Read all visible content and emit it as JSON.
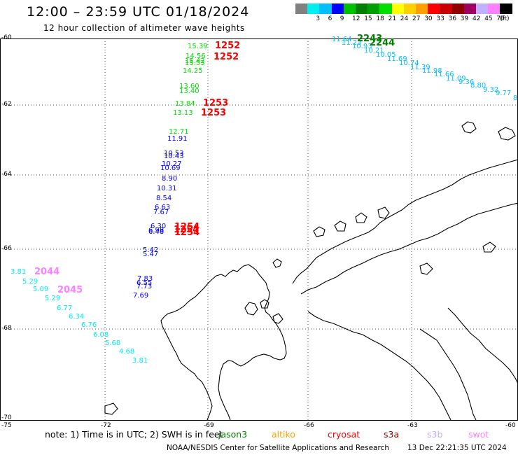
{
  "header": {
    "title": "12:00 – 23:59 UTC 01/18/2024",
    "subtitle": "12 hour collection of altimeter wave heights"
  },
  "colorbar": {
    "unit": "(ft)",
    "bins": [
      {
        "color": "#808080",
        "label": ""
      },
      {
        "color": "#00eeee",
        "label": "3"
      },
      {
        "color": "#00bfff",
        "label": "6"
      },
      {
        "color": "#0000ff",
        "label": "9"
      },
      {
        "color": "#00c000",
        "label": "12"
      },
      {
        "color": "#008000",
        "label": "15"
      },
      {
        "color": "#00a000",
        "label": "18"
      },
      {
        "color": "#00e000",
        "label": "21"
      },
      {
        "color": "#ffff00",
        "label": "24"
      },
      {
        "color": "#ffd000",
        "label": "27"
      },
      {
        "color": "#ffa000",
        "label": "30"
      },
      {
        "color": "#ff0000",
        "label": "33"
      },
      {
        "color": "#c80000",
        "label": "36"
      },
      {
        "color": "#900000",
        "label": "39"
      },
      {
        "color": "#a00060",
        "label": "42"
      },
      {
        "color": "#c0b0ff",
        "label": "45"
      },
      {
        "color": "#ff80ff",
        "label": "70"
      },
      {
        "color": "#000000",
        "label": ""
      }
    ]
  },
  "axes": {
    "lat_labels": [
      "-60",
      "-62",
      "-64",
      "-66",
      "-68",
      "-70"
    ],
    "lon_labels": [
      "-75",
      "-72",
      "-69",
      "-66",
      "-63",
      "-60"
    ]
  },
  "wave_groups": [
    {
      "color": "#00bfff",
      "values": [
        "11.64",
        "11.23",
        "10.93",
        "10.21",
        "10.05",
        "11.69",
        "10.74",
        "11.39",
        "11.98",
        "11.66",
        "11.09",
        "9.36",
        "8.80",
        "9.32",
        "9.77",
        "8"
      ]
    },
    {
      "color": "#00e000",
      "values": [
        "15.39",
        "14.56",
        "15.42",
        "15.53",
        "14.25",
        "13.60",
        "13.40",
        "13.84",
        "13.13",
        "12.71"
      ]
    },
    {
      "color": "#0000ff",
      "values": [
        "11.91",
        "10.53",
        "10.43",
        "10.27",
        "10.69",
        "8.90",
        "10.31",
        "8.54",
        "6.63",
        "7.67",
        "6.30",
        "6.98",
        "6.48",
        "5.42",
        "5.47",
        "7.83",
        "6.55",
        "7.73",
        "7.69"
      ]
    },
    {
      "color": "#00eeee",
      "values": [
        "3.81",
        "5.29",
        "5.09",
        "5.29",
        "6.77",
        "6.34",
        "6.76",
        "6.08",
        "5.68",
        "4.68",
        "3.81"
      ]
    }
  ],
  "time_labels": [
    {
      "text": "2243",
      "color": "#008000"
    },
    {
      "text": "2244",
      "color": "#008000"
    },
    {
      "text": "1252",
      "color": "#ff0000"
    },
    {
      "text": "1252",
      "color": "#ff0000"
    },
    {
      "text": "1253",
      "color": "#ff0000"
    },
    {
      "text": "1253",
      "color": "#ff0000"
    },
    {
      "text": "1254",
      "color": "#ff0000"
    },
    {
      "text": "1254",
      "color": "#ff0000"
    },
    {
      "text": "1254",
      "color": "#ff0000"
    },
    {
      "text": "2044",
      "color": "#ff80ff"
    },
    {
      "text": "2045",
      "color": "#ff80ff"
    }
  ],
  "footer": {
    "note": "note:  1) Time is in UTC; 2) SWH is in feet",
    "satellites": [
      {
        "name": "jason3",
        "color": "#008000"
      },
      {
        "name": "altiko",
        "color": "#ffa000"
      },
      {
        "name": "cryosat",
        "color": "#ff0000"
      },
      {
        "name": "s3a",
        "color": "#900000"
      },
      {
        "name": "s3b",
        "color": "#c0b0ff"
      },
      {
        "name": "swot",
        "color": "#ff80ff"
      }
    ],
    "credit": "NOAA/NESDIS Center for Satellite Applications and Research",
    "timestamp": "13 Dec 22:21:35 UTC 2024"
  }
}
